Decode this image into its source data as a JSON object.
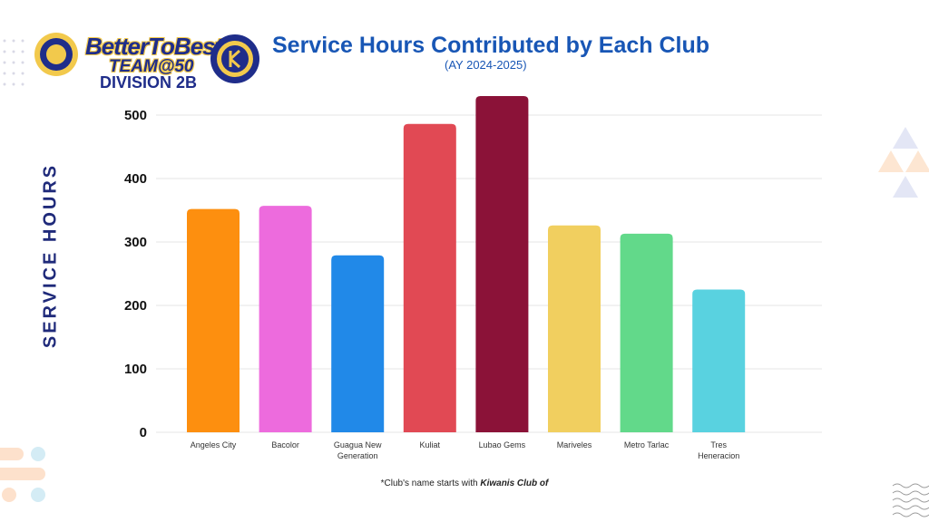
{
  "logo": {
    "line1": "BetterToBest",
    "line2": "TEAM@50",
    "division": "DIVISION 2B",
    "colors": {
      "navy": "#1f2d8a",
      "gold": "#f2c94c"
    }
  },
  "footnote": {
    "prefix": "*Club's name starts with ",
    "emphasis": "Kiwanis Club of"
  },
  "chart_data": {
    "type": "bar",
    "title": "Service Hours Contributed by Each Club",
    "subtitle": "(AY 2024-2025)",
    "xlabel": "",
    "ylabel": "SERVICE HOURS",
    "ylim": [
      0,
      550
    ],
    "yticks": [
      0,
      100,
      200,
      300,
      400,
      500
    ],
    "grid": true,
    "legend": "none",
    "categories": [
      "Angeles City",
      "Bacolor",
      "Guagua New Generation",
      "Kuliat",
      "Lubao Gems",
      "Mariveles",
      "Metro Tarlac",
      "Tres Heneracion"
    ],
    "category_lines": [
      [
        "Angeles City"
      ],
      [
        "Bacolor"
      ],
      [
        "Guagua New",
        "Generation"
      ],
      [
        "Kuliat"
      ],
      [
        "Lubao Gems"
      ],
      [
        "Mariveles"
      ],
      [
        "Metro Tarlac"
      ],
      [
        "Tres",
        "Heneracion"
      ]
    ],
    "values": [
      352,
      357,
      279,
      486,
      530,
      326,
      313,
      225
    ],
    "colors": [
      "#fd8f0f",
      "#ed6bdd",
      "#2189e8",
      "#e14954",
      "#8b1238",
      "#f1cf5f",
      "#62d98a",
      "#59d2e0"
    ]
  }
}
